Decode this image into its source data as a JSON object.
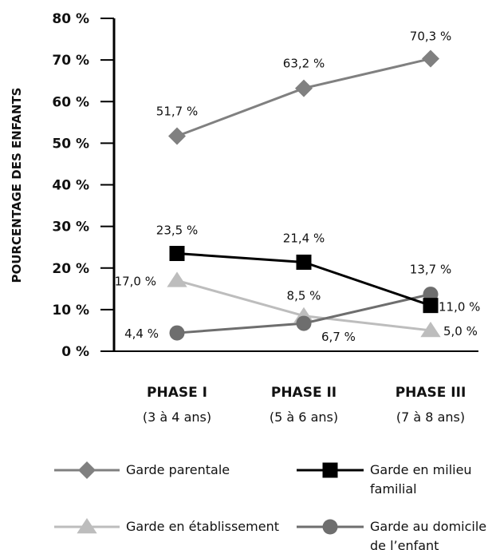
{
  "chart_data": {
    "type": "line",
    "ylabel": "POURCENTAGE DES ENFANTS",
    "ylim": [
      0,
      80
    ],
    "yticks": [
      "0 %",
      "10 %",
      "20 %",
      "30 %",
      "40 %",
      "50 %",
      "60 %",
      "70 %",
      "80 %"
    ],
    "categories": [
      {
        "label": "PHASE I",
        "sub": "(3 à 4 ans)"
      },
      {
        "label": "PHASE II",
        "sub": "(5 à 6 ans)"
      },
      {
        "label": "PHASE III",
        "sub": "(7 à 8 ans)"
      }
    ],
    "series": [
      {
        "name": "Garde parentale",
        "marker": "diamond",
        "color": "#808080",
        "values": [
          51.7,
          63.2,
          70.3
        ],
        "labels": [
          "51,7 %",
          "63,2 %",
          "70,3 %"
        ]
      },
      {
        "name": "Garde en milieu familial",
        "name_lines": [
          "Garde en milieu",
          "familial"
        ],
        "marker": "square",
        "color": "#000000",
        "values": [
          23.5,
          21.4,
          11.0
        ],
        "labels": [
          "23,5 %",
          "21,4 %",
          "11,0 %"
        ]
      },
      {
        "name": "Garde en établissement",
        "marker": "triangle",
        "color": "#bdbdbd",
        "values": [
          17.0,
          8.5,
          5.0
        ],
        "labels": [
          "17,0 %",
          "8,5 %",
          "5,0 %"
        ]
      },
      {
        "name": "Garde au domicile de l’enfant",
        "name_lines": [
          "Garde au domicile",
          "de l’enfant"
        ],
        "marker": "circle",
        "color": "#6e6e6e",
        "values": [
          4.4,
          6.7,
          13.7
        ],
        "labels": [
          "4,4 %",
          "6,7 %",
          "13,7 %"
        ]
      }
    ],
    "grid": false
  }
}
